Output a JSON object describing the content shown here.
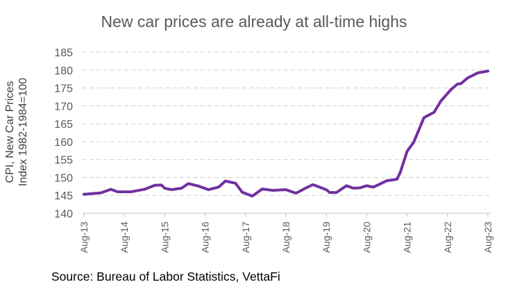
{
  "chart_data": {
    "type": "line",
    "title": "New car prices are already at all-time highs",
    "ylabel_line1": "CPI, New Car Prices",
    "ylabel_line2": "Index 1982-1984=100",
    "source": "Source: Bureau of Labor Statistics, VettaFi",
    "ylim": [
      140,
      185
    ],
    "yticks": [
      140,
      145,
      150,
      155,
      160,
      165,
      170,
      175,
      180,
      185
    ],
    "xticks": [
      "Aug-13",
      "Aug-14",
      "Aug-15",
      "Aug-16",
      "Aug-17",
      "Aug-18",
      "Aug-19",
      "Aug-20",
      "Aug-21",
      "Aug-22",
      "Aug-23"
    ],
    "grid": "horizontal dashed",
    "line_color": "#7030A0",
    "x": [
      "2013-08",
      "2014-01",
      "2014-04",
      "2014-06",
      "2014-10",
      "2015-02",
      "2015-05",
      "2015-07",
      "2015-08",
      "2015-10",
      "2016-01",
      "2016-03",
      "2016-06",
      "2016-09",
      "2016-12",
      "2017-02",
      "2017-04",
      "2017-05",
      "2017-07",
      "2017-10",
      "2018-01",
      "2018-04",
      "2018-08",
      "2018-11",
      "2019-02",
      "2019-04",
      "2019-08",
      "2019-09",
      "2019-11",
      "2020-02",
      "2020-04",
      "2020-06",
      "2020-08",
      "2020-10",
      "2021-02",
      "2021-05",
      "2021-06",
      "2021-08",
      "2021-10",
      "2022-01",
      "2022-04",
      "2022-06",
      "2022-09",
      "2022-11",
      "2022-12",
      "2023-02",
      "2023-05",
      "2023-08"
    ],
    "values": [
      145.3,
      145.7,
      146.7,
      146.0,
      146.0,
      146.7,
      147.8,
      147.9,
      147.0,
      146.6,
      147.0,
      148.3,
      147.6,
      146.6,
      147.3,
      149.0,
      148.6,
      148.4,
      145.9,
      144.8,
      146.8,
      146.4,
      146.6,
      145.6,
      147.1,
      148.0,
      146.6,
      145.8,
      145.8,
      147.7,
      147.0,
      147.1,
      147.7,
      147.3,
      149.1,
      149.5,
      151.5,
      157.3,
      159.9,
      166.7,
      168.2,
      171.3,
      174.5,
      176.1,
      176.2,
      177.8,
      179.2,
      179.7
    ]
  }
}
